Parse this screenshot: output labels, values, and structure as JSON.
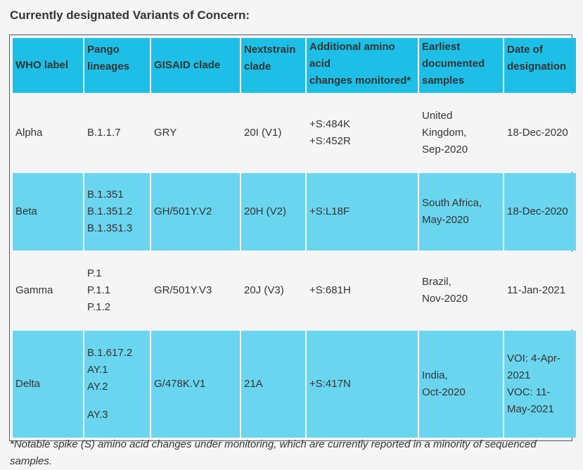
{
  "title": "Currently designated Variants of Concern:",
  "table": {
    "headers": [
      [
        "WHO label"
      ],
      [
        "Pango",
        "lineages"
      ],
      [
        "GISAID clade"
      ],
      [
        "Nextstrain",
        "clade"
      ],
      [
        "Additional amino",
        "acid",
        "changes monitored*"
      ],
      [
        "Earliest",
        "documented",
        "samples"
      ],
      [
        "Date of",
        "designation"
      ]
    ],
    "rows": [
      {
        "who_label": "Alpha",
        "pango": [
          "B.1.1.7"
        ],
        "gisaid": "GRY",
        "nextstrain": "20I (V1)",
        "amino": [
          "+S:484K",
          "+S:452R"
        ],
        "earliest": [
          "United",
          "Kingdom,",
          "Sep-2020"
        ],
        "designation": [
          "18-Dec-2020"
        ]
      },
      {
        "who_label": "Beta",
        "pango": [
          "B.1.351",
          "B.1.351.2",
          "B.1.351.3"
        ],
        "gisaid": "GH/501Y.V2",
        "nextstrain": "20H (V2)",
        "amino": [
          "+S:L18F"
        ],
        "earliest": [
          "South Africa,",
          "May-2020"
        ],
        "designation": [
          "18-Dec-2020"
        ]
      },
      {
        "who_label": "Gamma",
        "pango": [
          "P.1",
          "P.1.1",
          "P.1.2"
        ],
        "gisaid": "GR/501Y.V3",
        "nextstrain": "20J (V3)",
        "amino": [
          "+S:681H"
        ],
        "earliest": [
          "Brazil,",
          "Nov-2020"
        ],
        "designation": [
          "11-Jan-2021"
        ]
      },
      {
        "who_label": "Delta",
        "pango": [
          "B.1.617.2",
          "AY.1",
          "AY.2",
          "AY.3"
        ],
        "gisaid": "G/478K.V1",
        "nextstrain": "21A",
        "amino": [
          "+S:417N"
        ],
        "earliest": [
          "India,",
          "Oct-2020"
        ],
        "designation": [
          "VOI: 4-Apr-",
          "2021",
          "VOC: 11-",
          "May-2021"
        ]
      }
    ]
  },
  "footnote": "*Notable spike (S) amino acid changes under monitoring, which are currently reported in a minority of sequenced samples.",
  "colors": {
    "header_bg": "#1ebfe6",
    "row_blue_bg": "#6ad5ef",
    "page_bg": "#f5f5f5"
  }
}
